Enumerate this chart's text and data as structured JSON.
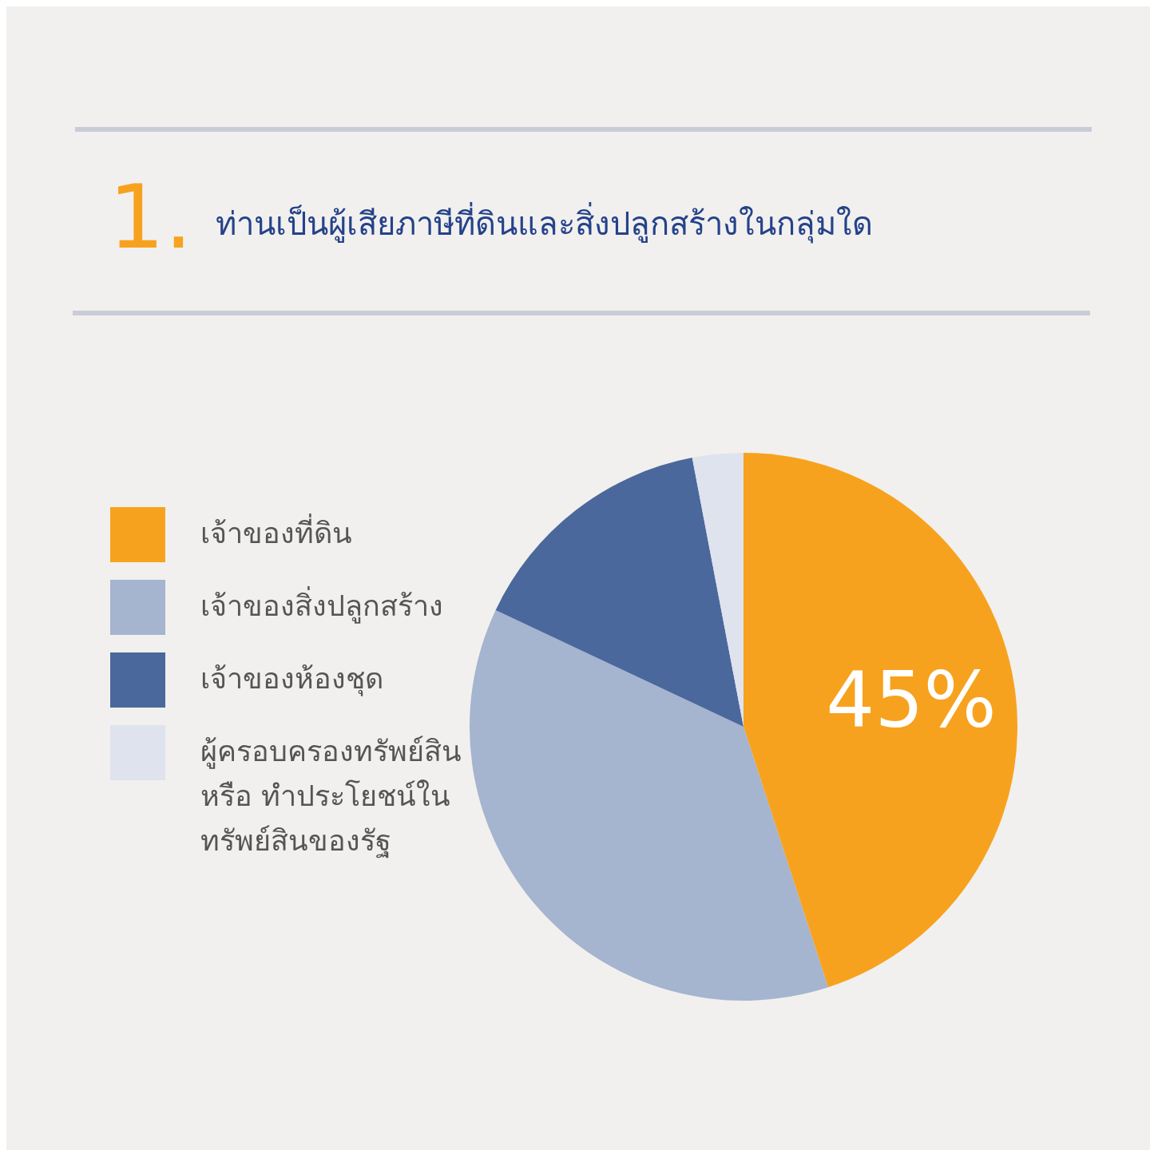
{
  "chart_data": {
    "type": "pie",
    "title": "ท่านเป็นผู้เสียภาษีที่ดินและสิ่งปลูกสร้างในกลุ่มใด",
    "annotations": [
      "1."
    ],
    "categories": [
      "เจ้าของที่ดิน",
      "เจ้าของสิ่งปลูกสร้าง",
      "เจ้าของห้องชุด",
      "ผู้ครอบครองทรัพย์สิน หรือ ทำประโยชน์ในทรัพย์สินของรัฐ"
    ],
    "values": [
      45,
      37,
      15,
      3
    ],
    "colors": [
      "#f7a21e",
      "#a5b4cf",
      "#4b689c",
      "#dfe3ee"
    ],
    "value_labels": [
      "45%",
      null,
      null,
      null
    ],
    "legend": "left"
  }
}
